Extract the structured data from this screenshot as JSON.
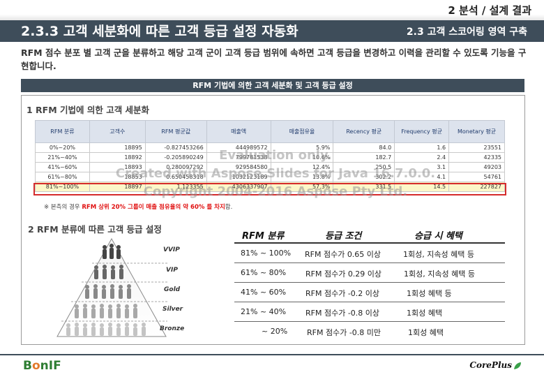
{
  "header": {
    "kicker": "2 분석 / 설계 결과",
    "title": "2.3.3 고객 세분화에 따른 고객 등급 설정 자동화",
    "subtitle": "2.3 고객 스코어링 영역 구축"
  },
  "intro": "RFM 점수 분포 별 고객 군을 분류하고 해당 고객 군이 고객 등급 범위에 속하면 고객 등급을 변경하고 이력을 관리할 수 있도록 기능을 구현합니다.",
  "banner": "RFM 기법에 의한 고객 세분화 및 고객 등급 설정",
  "section1": {
    "title": "1 RFM 기법에 의한 고객 세분화",
    "columns": [
      "RFM 분류",
      "고객수",
      "RFM 평균값",
      "매출액",
      "매출점유율",
      "Recency 평균",
      "Frequency 평균",
      "Monetary 평균"
    ],
    "rows": [
      [
        "0%~20%",
        "18895",
        "-0.827453266",
        "444989572",
        "5.9%",
        "84.0",
        "1.6",
        "23551"
      ],
      [
        "21%~40%",
        "18892",
        "-0.205890249",
        "799781538",
        "10.6%",
        "182.7",
        "2.4",
        "42335"
      ],
      [
        "41%~60%",
        "18893",
        "0.280097292",
        "929584580",
        "12.4%",
        "250.5",
        "3.1",
        "49203"
      ],
      [
        "61%~80%",
        "18853",
        "0.650458318",
        "1032123189",
        "13.8%",
        "302.2",
        "4.1",
        "54761"
      ],
      [
        "81%~100%",
        "18897",
        "1.123355",
        "4306337907",
        "57.3%",
        "331.5",
        "14.5",
        "227827"
      ]
    ],
    "note_prefix": "※ 본측의 경우 ",
    "note_highlight": "RFM 상위 20% 그룹이 매출 점유율의 약 60% 를 차지",
    "note_suffix": "함."
  },
  "watermark": {
    "line1": "Evaluation only.",
    "line2": "Created with Aspose.Slides for Java 16.7.0.0.",
    "line3": "Copyright 2004-2016 Aspose Pty Ltd."
  },
  "section2": {
    "title": "2 RFM 분류에 따른 고객 등급 설정",
    "pyramid": [
      "VVIP",
      "VIP",
      "Gold",
      "Silver",
      "Bronze"
    ],
    "headers": [
      "RFM 분류",
      "등급 조건",
      "승급 시 혜택"
    ],
    "rows": [
      [
        "81% ~ 100%",
        "RFM 점수가 0.65 이상",
        "1회성, 지속성 혜택 등"
      ],
      [
        "61% ~ 80%",
        "RFM 점수가 0.29 이상",
        "1회성, 지속성 혜택 등"
      ],
      [
        "41% ~ 60%",
        "RFM 점수가 -0.2 이상",
        "1회성 혜택 등"
      ],
      [
        "21% ~ 40%",
        "RFM 점수가 -0.8 이상",
        "1회성 혜택"
      ],
      [
        "~ 20%",
        "RFM 점수가 -0.8 미만",
        "1회성 혜택"
      ]
    ]
  },
  "footer": {
    "logo_left_a": "B",
    "logo_left_b": "o",
    "logo_left_c": "nIF",
    "logo_right": "CorePlus"
  },
  "colors": {
    "header_bg": "#3e4d5a",
    "highlight_border": "#d52b2b",
    "highlight_text": "#e01010",
    "row_highlight": "#fcf7c8"
  }
}
